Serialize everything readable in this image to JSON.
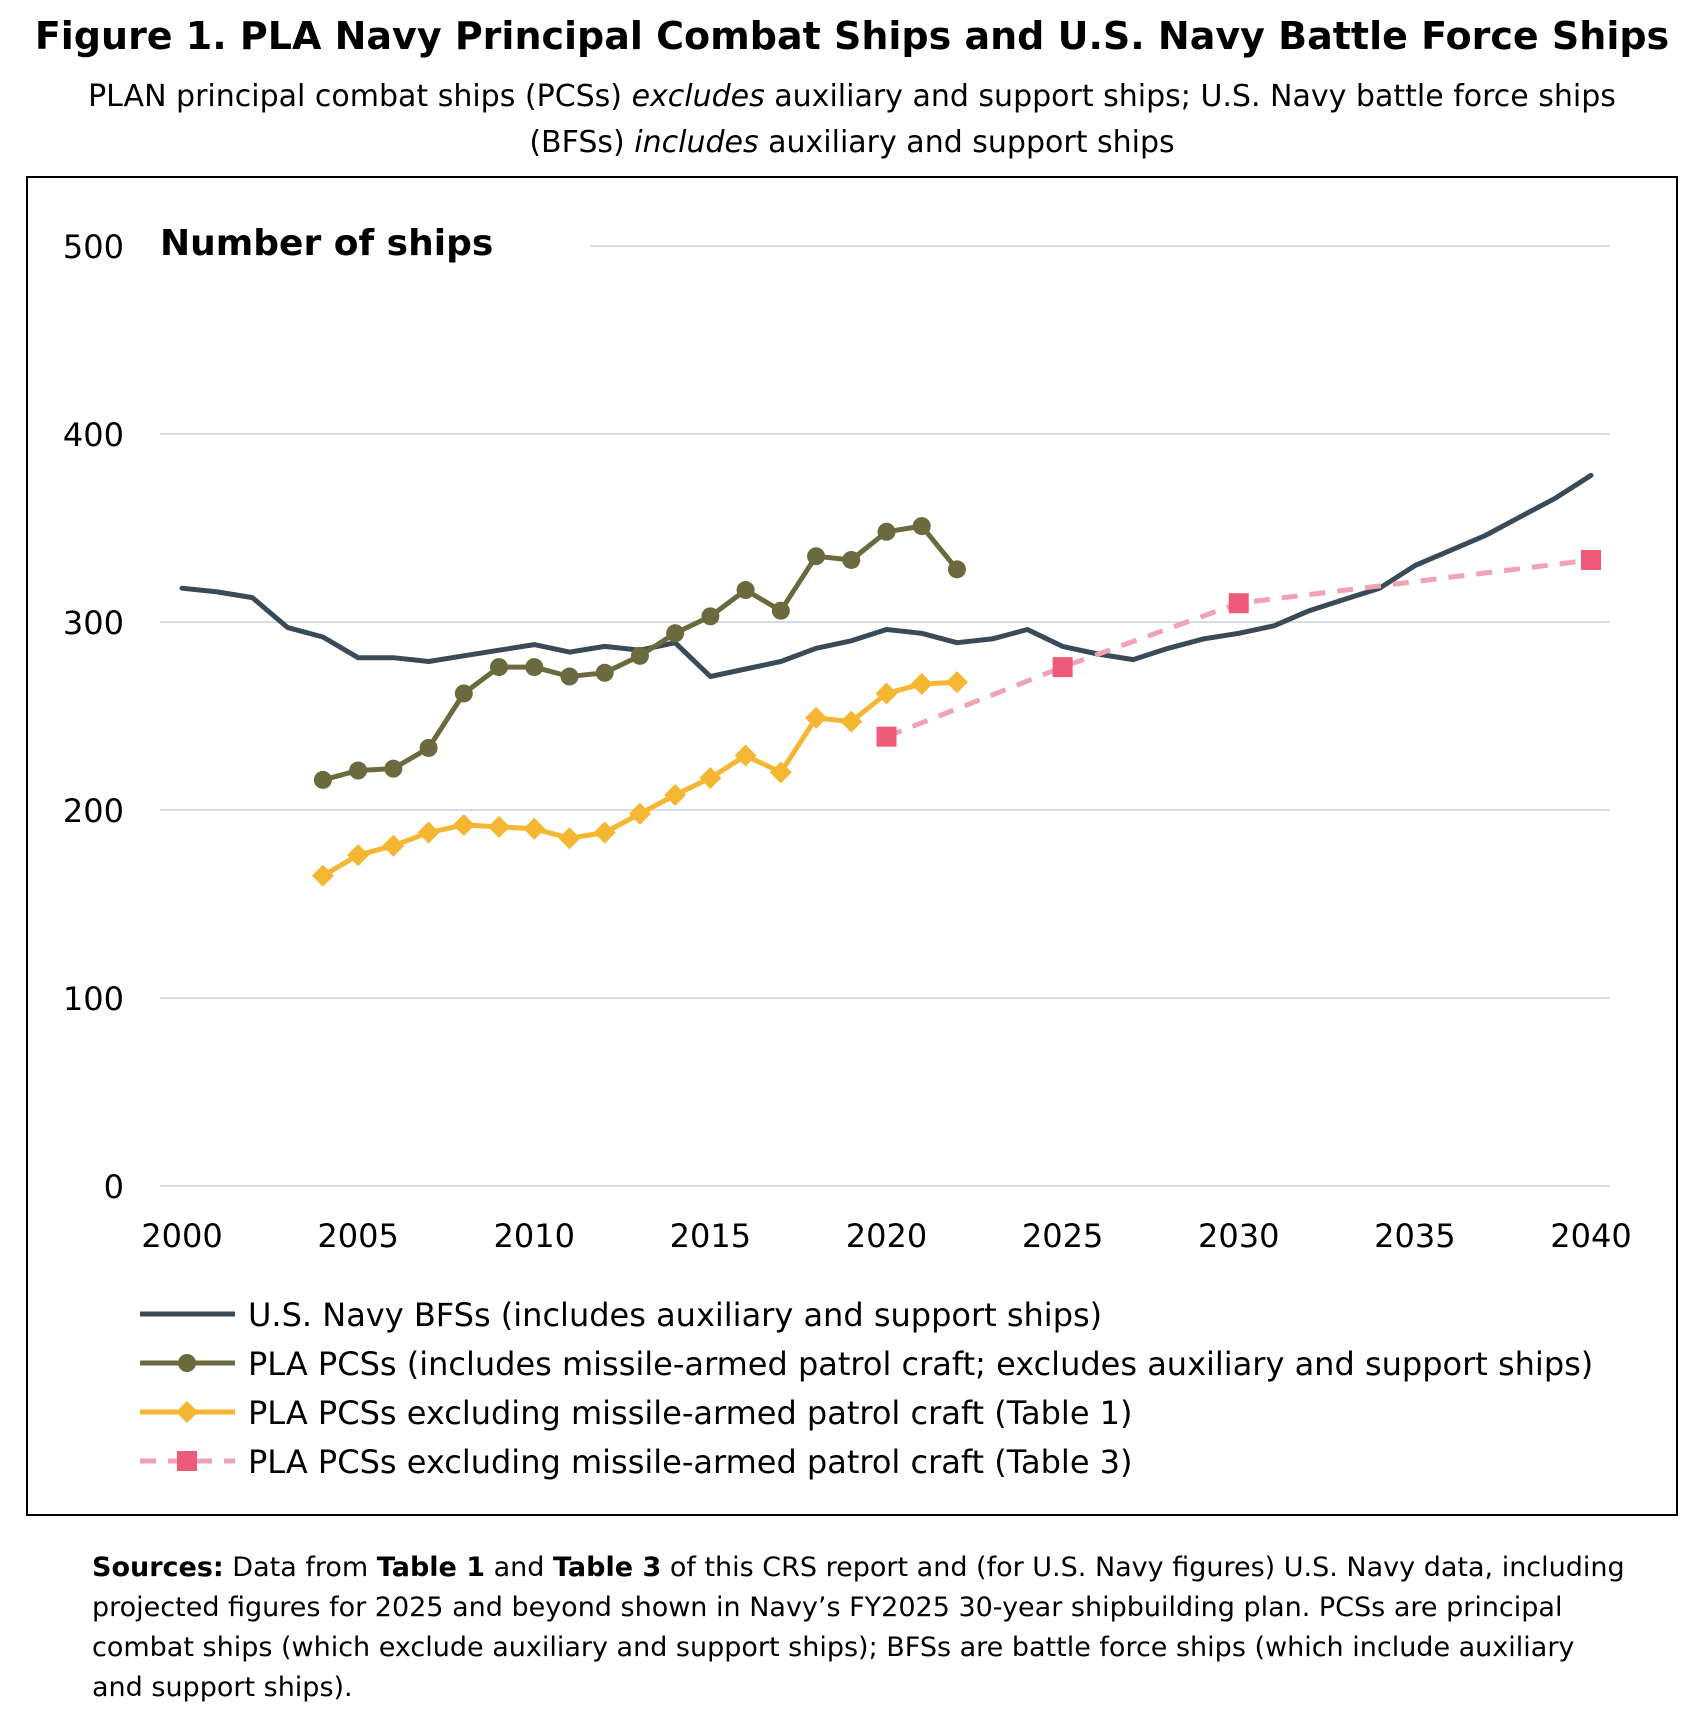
{
  "figure": {
    "title": "Figure 1. PLA Navy Principal Combat Ships and U.S. Navy Battle Force Ships",
    "subtitle": {
      "part1": "PLAN principal combat ships (PCSs) ",
      "part1_em": "excludes",
      "part2": " auxiliary and support ships; U.S. Navy battle force ships (BFSs) ",
      "part2_em": "includes",
      "part3": " auxiliary and support ships"
    }
  },
  "sources": {
    "label": "Sources:",
    "t1": " Data from ",
    "b1": "Table 1",
    "t2": " and ",
    "b2": "Table 3",
    "t3": " of this CRS report and (for U.S. Navy figures) U.S. Navy data, including projected figures for 2025 and beyond shown in Navy’s FY2025 30-year shipbuilding plan. PCSs are principal combat ships (which exclude auxiliary and support ships); BFSs are battle force ships (which include auxiliary and support ships)."
  },
  "chart_data": {
    "type": "line",
    "ylabel": "Number of ships",
    "xlim": [
      2000,
      2040
    ],
    "ylim": [
      0,
      500
    ],
    "x_ticks": [
      2000,
      2005,
      2010,
      2015,
      2020,
      2025,
      2030,
      2035,
      2040
    ],
    "y_ticks": [
      0,
      100,
      200,
      300,
      400,
      500
    ],
    "grid": true,
    "legend_position": "bottom",
    "series": [
      {
        "name": "U.S. Navy BFSs (includes auxiliary and support ships)",
        "color": "#3b4a57",
        "marker": "none",
        "dashed": false,
        "x": [
          2000,
          2001,
          2002,
          2003,
          2004,
          2005,
          2006,
          2007,
          2008,
          2009,
          2010,
          2011,
          2012,
          2013,
          2014,
          2015,
          2016,
          2017,
          2018,
          2019,
          2020,
          2021,
          2022,
          2023,
          2024,
          2025,
          2026,
          2027,
          2028,
          2029,
          2030,
          2031,
          2032,
          2033,
          2034,
          2035,
          2036,
          2037,
          2038,
          2039,
          2040
        ],
        "y": [
          318,
          316,
          313,
          297,
          292,
          281,
          281,
          279,
          282,
          285,
          288,
          284,
          287,
          285,
          289,
          271,
          275,
          279,
          286,
          290,
          296,
          294,
          289,
          291,
          296,
          287,
          283,
          280,
          286,
          291,
          294,
          298,
          306,
          312,
          318,
          330,
          338,
          346,
          356,
          366,
          378
        ]
      },
      {
        "name": "PLA PCSs (includes missile-armed patrol craft; excludes auxiliary and support ships)",
        "color": "#6b6a3e",
        "marker": "circle",
        "dashed": false,
        "x": [
          2004,
          2005,
          2006,
          2007,
          2008,
          2009,
          2010,
          2011,
          2012,
          2013,
          2014,
          2015,
          2016,
          2017,
          2018,
          2019,
          2020,
          2021,
          2022
        ],
        "y": [
          216,
          221,
          222,
          233,
          262,
          276,
          276,
          271,
          273,
          282,
          294,
          303,
          317,
          306,
          335,
          333,
          348,
          351,
          328
        ]
      },
      {
        "name": "PLA PCSs excluding missile-armed patrol craft (Table 1)",
        "color": "#f5b731",
        "marker": "diamond",
        "dashed": false,
        "x": [
          2004,
          2005,
          2006,
          2007,
          2008,
          2009,
          2010,
          2011,
          2012,
          2013,
          2014,
          2015,
          2016,
          2017,
          2018,
          2019,
          2020,
          2021,
          2022
        ],
        "y": [
          165,
          176,
          181,
          188,
          192,
          191,
          190,
          185,
          188,
          198,
          208,
          217,
          229,
          220,
          249,
          247,
          262,
          267,
          268
        ]
      },
      {
        "name": "PLA PCSs excluding missile-armed patrol craft (Table 3)",
        "color": "#f0a3b4",
        "marker_color": "#ee5a78",
        "marker": "square",
        "dashed": true,
        "x": [
          2020,
          2025,
          2030,
          2040
        ],
        "y": [
          239,
          276,
          310,
          333
        ]
      }
    ]
  }
}
